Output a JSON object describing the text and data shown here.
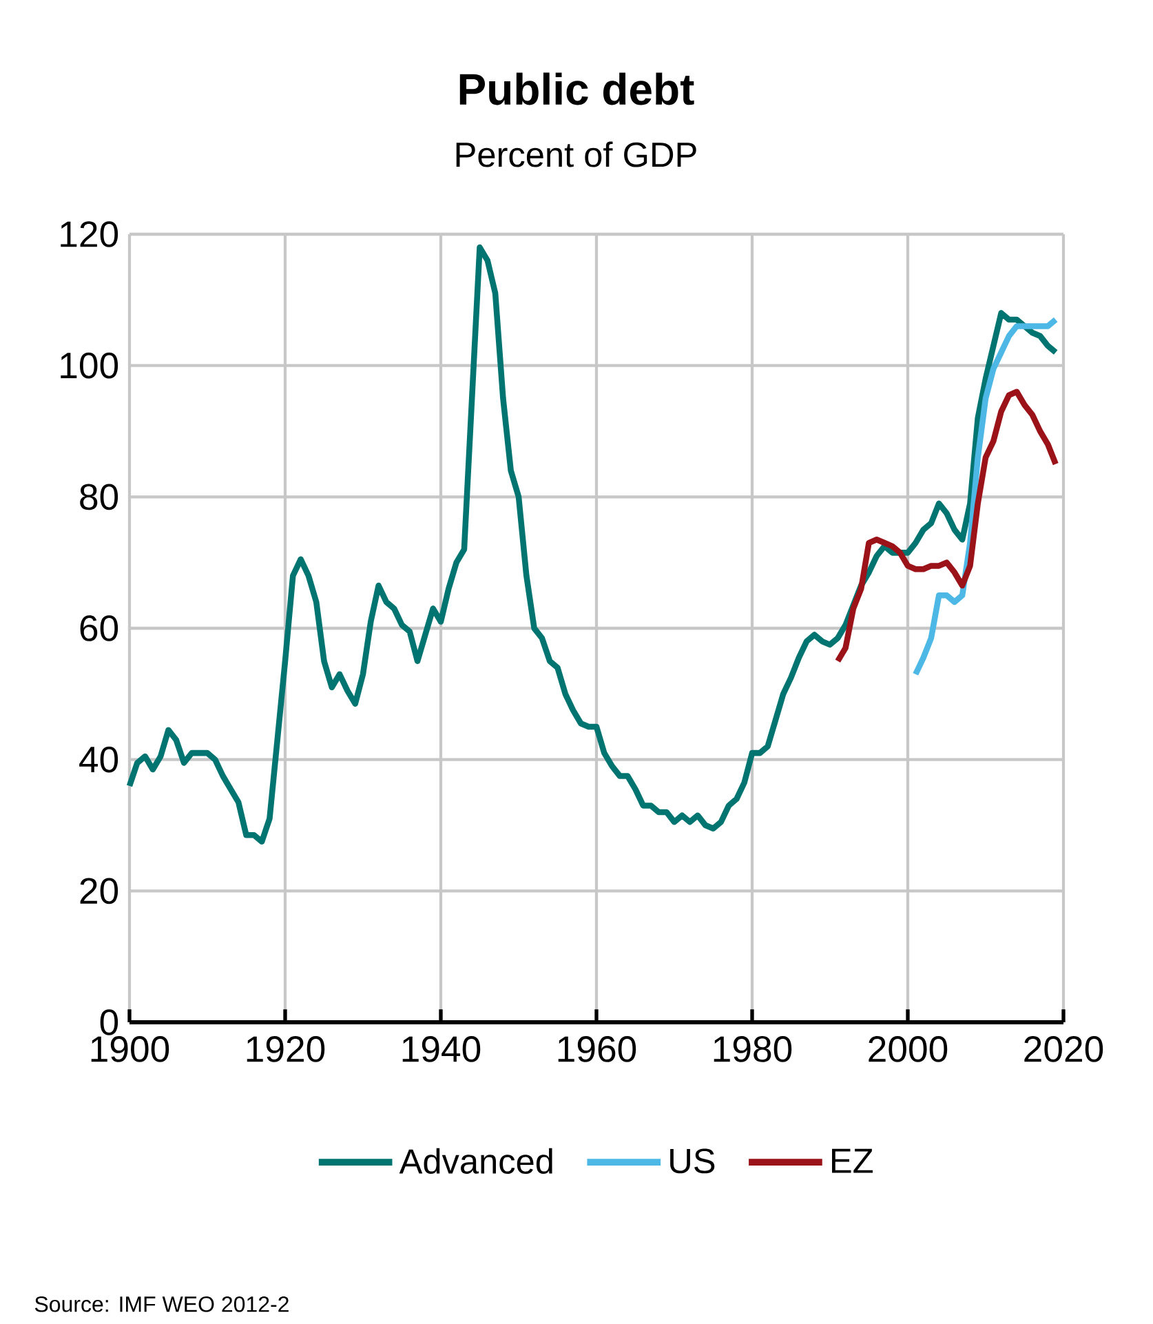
{
  "chart_data": {
    "type": "line",
    "title": "Public debt",
    "subtitle": "Percent of GDP",
    "xlim": [
      1900,
      2020
    ],
    "xticks": [
      1900,
      1920,
      1940,
      1960,
      1980,
      2000,
      2020
    ],
    "ylim": [
      0,
      120
    ],
    "yticks": [
      0,
      20,
      40,
      60,
      80,
      100,
      120
    ],
    "grid": true,
    "legend": "bottom",
    "line_style": "solid",
    "marker": "none",
    "annotations": [
      "Source:  IMF WEO 2012-2"
    ],
    "series": [
      {
        "name": "Advanced",
        "color": "#007470",
        "x": [
          1900,
          1901,
          1902,
          1903,
          1904,
          1905,
          1906,
          1907,
          1908,
          1909,
          1910,
          1911,
          1912,
          1913,
          1914,
          1915,
          1916,
          1917,
          1918,
          1919,
          1920,
          1921,
          1922,
          1923,
          1924,
          1925,
          1926,
          1927,
          1928,
          1929,
          1930,
          1931,
          1932,
          1933,
          1934,
          1935,
          1936,
          1937,
          1938,
          1939,
          1940,
          1941,
          1942,
          1943,
          1944,
          1945,
          1946,
          1947,
          1948,
          1949,
          1950,
          1951,
          1952,
          1953,
          1954,
          1955,
          1956,
          1957,
          1958,
          1959,
          1960,
          1961,
          1962,
          1963,
          1964,
          1965,
          1966,
          1967,
          1968,
          1969,
          1970,
          1971,
          1972,
          1973,
          1974,
          1975,
          1976,
          1977,
          1978,
          1979,
          1980,
          1981,
          1982,
          1983,
          1984,
          1985,
          1986,
          1987,
          1988,
          1989,
          1990,
          1991,
          1992,
          1993,
          1994,
          1995,
          1996,
          1997,
          1998,
          1999,
          2000,
          2001,
          2002,
          2003,
          2004,
          2005,
          2006,
          2007,
          2008,
          2009,
          2010,
          2011,
          2012,
          2013,
          2014,
          2015,
          2016,
          2017,
          2018,
          2019
        ],
        "values": [
          36,
          39.5,
          40.5,
          38.5,
          40.5,
          44.5,
          43,
          39.5,
          41,
          41,
          41,
          40,
          37.5,
          35.5,
          33.5,
          28.5,
          28.5,
          27.5,
          31,
          43,
          55,
          68,
          70.5,
          68,
          64,
          55,
          51,
          53,
          50.5,
          48.5,
          53,
          61,
          66.5,
          64,
          63,
          60.5,
          59.5,
          55,
          59,
          63,
          61,
          66,
          70,
          72,
          95,
          118,
          116,
          111,
          95,
          84,
          80,
          68,
          60,
          58.5,
          55,
          54,
          50,
          47.5,
          45.5,
          45,
          45,
          41,
          39,
          37.5,
          37.5,
          35.5,
          33,
          33,
          32,
          32,
          30.5,
          31.5,
          30.5,
          31.5,
          30,
          29.5,
          30.5,
          33,
          34,
          36.5,
          41,
          41,
          42,
          46,
          50,
          52.5,
          55.5,
          58,
          59,
          58,
          57.5,
          58.5,
          60.5,
          63.5,
          66.5,
          68.5,
          71,
          72.5,
          71.5,
          71.5,
          71.5,
          73,
          75,
          76,
          79,
          77.5,
          75,
          73.5,
          79,
          92,
          98,
          103,
          108,
          107,
          107,
          106,
          105,
          104.5,
          103,
          102
        ]
      },
      {
        "name": "US",
        "color": "#4db8e6",
        "x": [
          2001,
          2002,
          2003,
          2004,
          2005,
          2006,
          2007,
          2008,
          2009,
          2010,
          2011,
          2012,
          2013,
          2014,
          2015,
          2016,
          2017,
          2018,
          2019
        ],
        "values": [
          53,
          55.5,
          58.5,
          65,
          65,
          64,
          65,
          73,
          86,
          95,
          99.5,
          102,
          104.5,
          106,
          106,
          106,
          106,
          106,
          107
        ]
      },
      {
        "name": "EZ",
        "color": "#9b1218",
        "x": [
          1991,
          1992,
          1993,
          1994,
          1995,
          1996,
          1997,
          1998,
          1999,
          2000,
          2001,
          2002,
          2003,
          2004,
          2005,
          2006,
          2007,
          2008,
          2009,
          2010,
          2011,
          2012,
          2013,
          2014,
          2015,
          2016,
          2017,
          2018,
          2019
        ],
        "values": [
          55,
          57,
          63,
          66,
          73,
          73.5,
          73,
          72.5,
          71.5,
          69.5,
          69,
          69,
          69.5,
          69.5,
          70,
          68.5,
          66.5,
          69.5,
          79,
          86,
          88.5,
          93,
          95.5,
          96,
          94,
          92.5,
          90,
          88,
          85
        ]
      }
    ]
  }
}
